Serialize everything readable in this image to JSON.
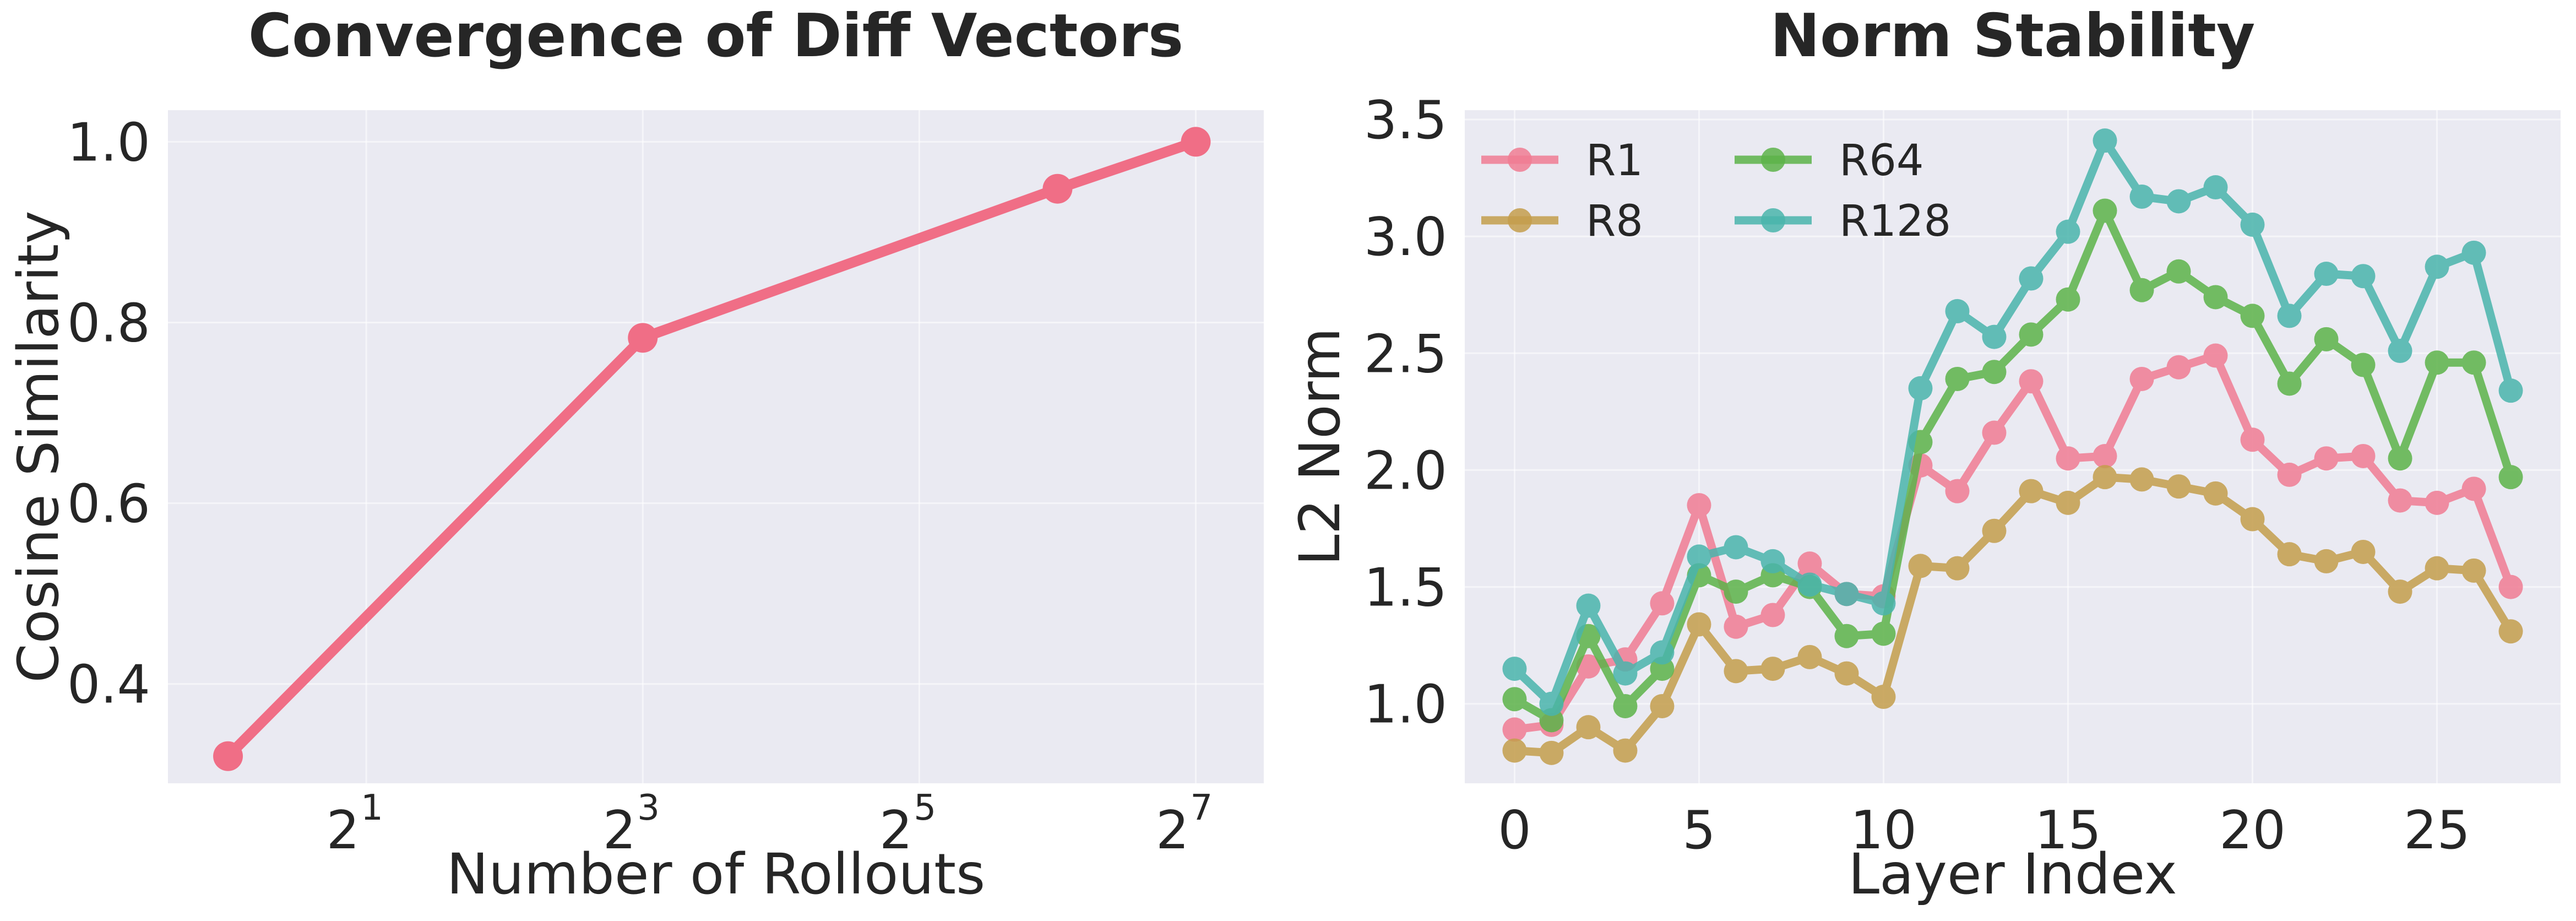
{
  "chart_data": [
    {
      "type": "line",
      "title": "Convergence of Diff Vectors",
      "xlabel": "Number of Rollouts",
      "ylabel": "Cosine Similarity",
      "x_scale": "log2",
      "x": [
        1,
        8,
        64,
        128
      ],
      "xlim": [
        0.74,
        180
      ],
      "ylim": [
        0.29,
        1.035
      ],
      "x_ticks": [
        {
          "value": 2,
          "base": "2",
          "exp": "1"
        },
        {
          "value": 8,
          "base": "2",
          "exp": "3"
        },
        {
          "value": 32,
          "base": "2",
          "exp": "5"
        },
        {
          "value": 128,
          "base": "2",
          "exp": "7"
        }
      ],
      "y_ticks": [
        "0.4",
        "0.6",
        "0.8",
        "1.0"
      ],
      "grid": true,
      "series": [
        {
          "values": [
            0.32,
            0.783,
            0.948,
            1.0
          ],
          "color": "#f06e86"
        }
      ]
    },
    {
      "type": "line",
      "title": "Norm Stability",
      "xlabel": "Layer Index",
      "ylabel": "L2 Norm",
      "x": [
        0,
        1,
        2,
        3,
        4,
        5,
        6,
        7,
        8,
        9,
        10,
        11,
        12,
        13,
        14,
        15,
        16,
        17,
        18,
        19,
        20,
        21,
        22,
        23,
        24,
        25,
        26,
        27
      ],
      "xlim": [
        -1.35,
        28.35
      ],
      "ylim": [
        0.66,
        3.54
      ],
      "x_ticks": [
        "0",
        "5",
        "10",
        "15",
        "20",
        "25"
      ],
      "y_ticks": [
        "1.0",
        "1.5",
        "2.0",
        "2.5",
        "3.0",
        "3.5"
      ],
      "grid": true,
      "legend_position": "top-left",
      "series": [
        {
          "name": "R1",
          "color": "#f07c93",
          "values": [
            0.89,
            0.91,
            1.16,
            1.19,
            1.43,
            1.85,
            1.33,
            1.38,
            1.6,
            1.47,
            1.46,
            2.02,
            1.91,
            2.16,
            2.38,
            2.05,
            2.06,
            2.39,
            2.44,
            2.49,
            2.13,
            1.98,
            2.05,
            2.06,
            1.87,
            1.86,
            1.92,
            1.5
          ]
        },
        {
          "name": "R8",
          "color": "#c49e4c",
          "values": [
            0.8,
            0.79,
            0.9,
            0.8,
            0.99,
            1.34,
            1.14,
            1.15,
            1.2,
            1.13,
            1.03,
            1.59,
            1.58,
            1.74,
            1.91,
            1.86,
            1.97,
            1.96,
            1.93,
            1.9,
            1.79,
            1.64,
            1.61,
            1.65,
            1.48,
            1.58,
            1.57,
            1.31
          ]
        },
        {
          "name": "R64",
          "color": "#5db34a",
          "values": [
            1.02,
            0.93,
            1.29,
            0.99,
            1.15,
            1.55,
            1.48,
            1.55,
            1.5,
            1.29,
            1.3,
            2.12,
            2.39,
            2.42,
            2.58,
            2.73,
            3.11,
            2.77,
            2.85,
            2.74,
            2.66,
            2.37,
            2.56,
            2.45,
            2.05,
            2.46,
            2.46,
            1.97
          ]
        },
        {
          "name": "R128",
          "color": "#4ab5ac",
          "values": [
            1.15,
            1.0,
            1.42,
            1.13,
            1.22,
            1.63,
            1.67,
            1.61,
            1.51,
            1.47,
            1.43,
            2.35,
            2.68,
            2.57,
            2.82,
            3.02,
            3.41,
            3.17,
            3.15,
            3.21,
            3.05,
            2.66,
            2.84,
            2.83,
            2.51,
            2.87,
            2.93,
            2.34
          ]
        }
      ]
    }
  ]
}
